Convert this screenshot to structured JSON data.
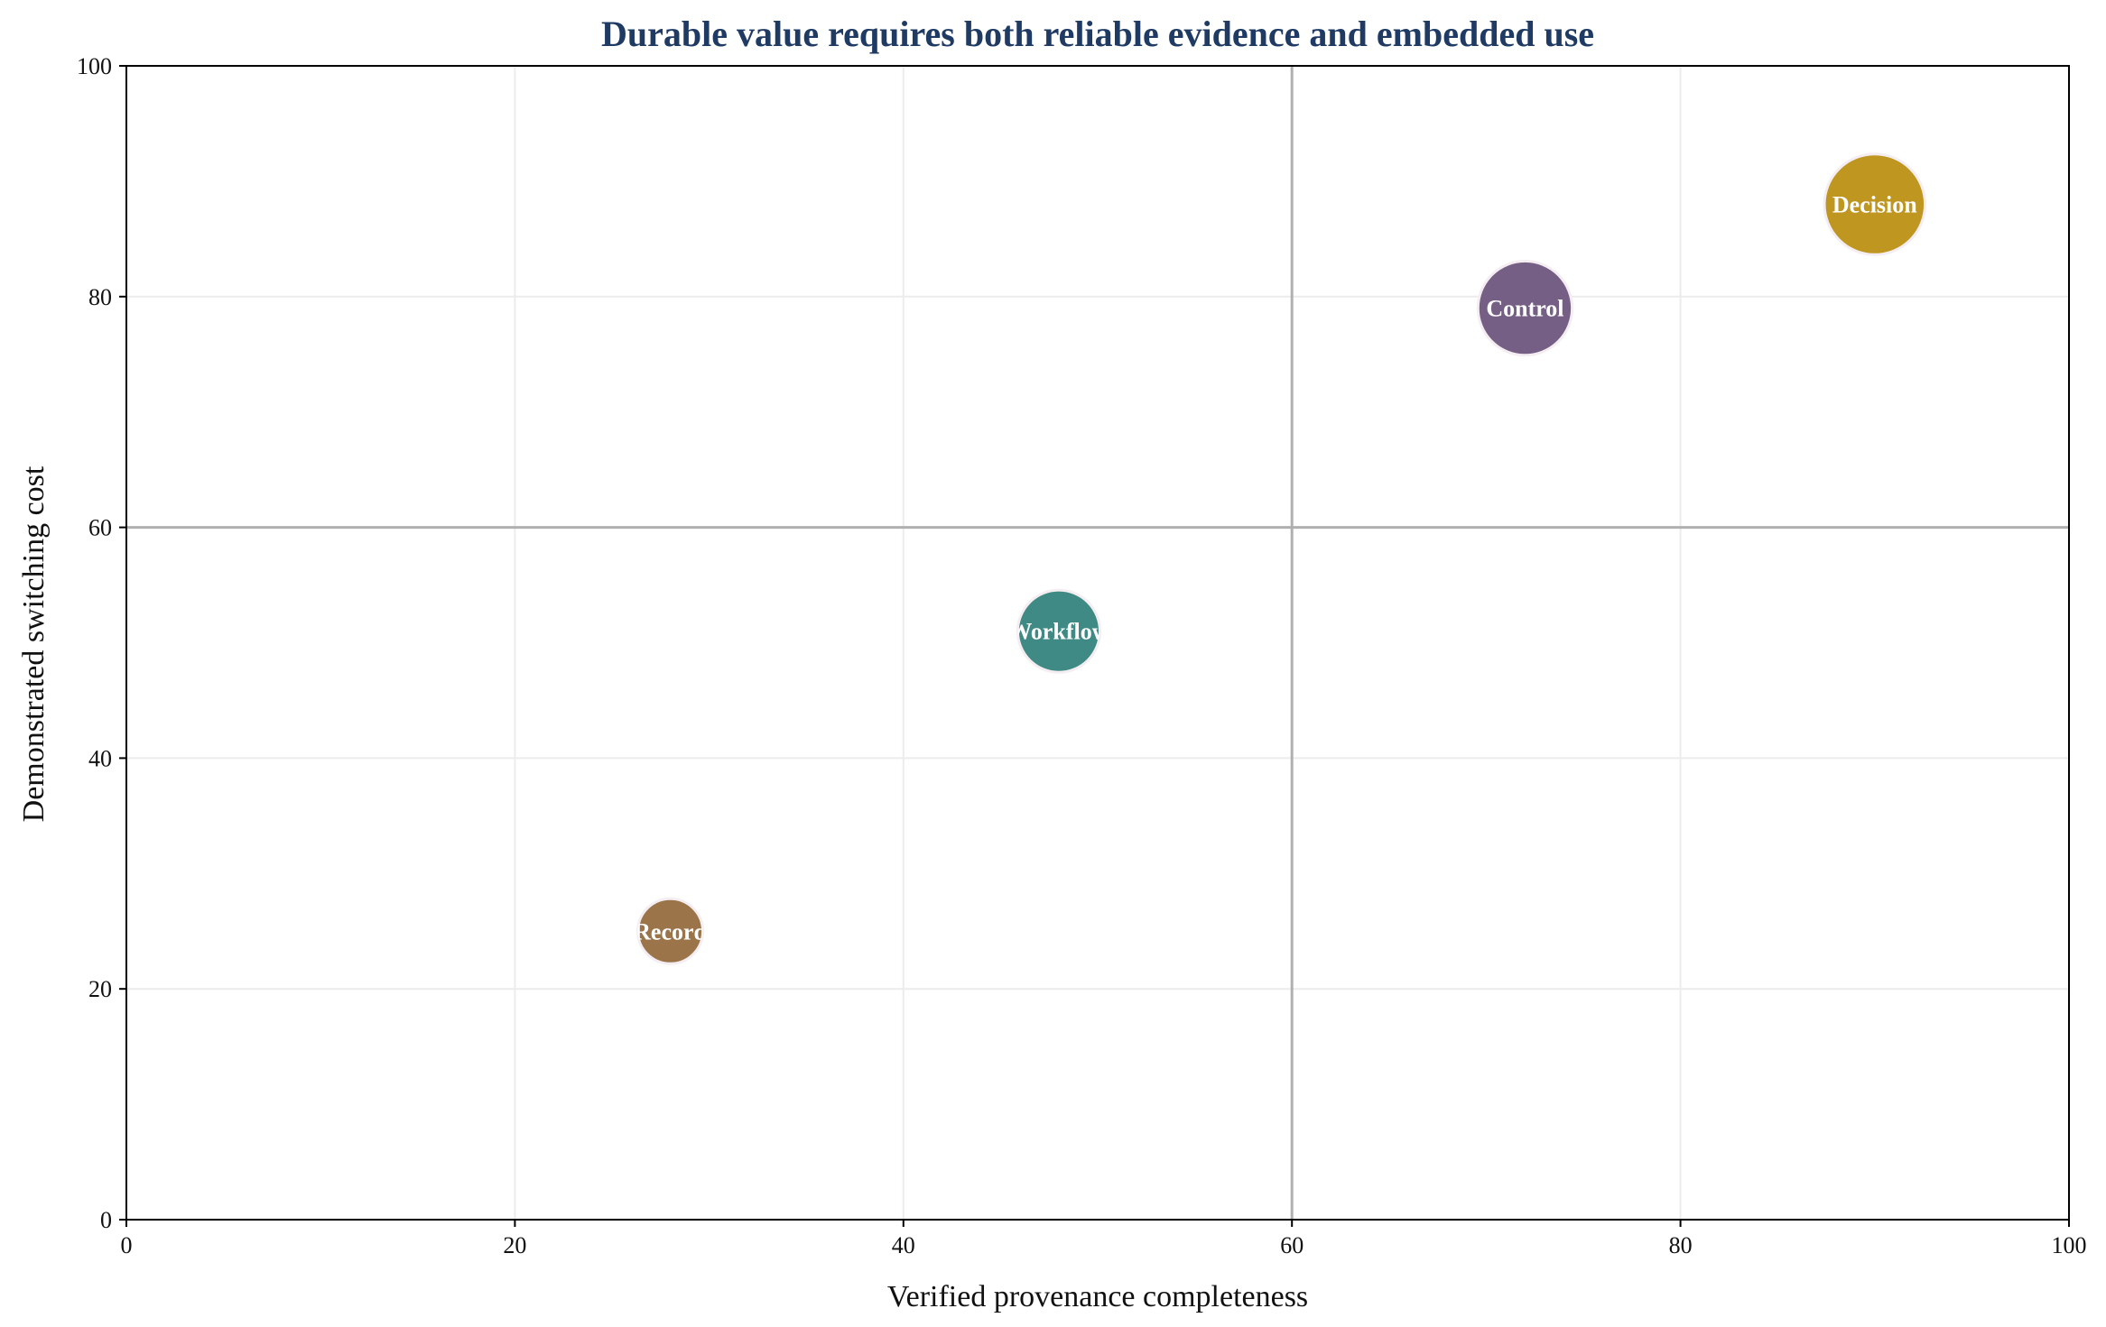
{
  "chart_data": {
    "type": "scatter",
    "title": "Durable value requires both reliable evidence and embedded use",
    "xlabel": "Verified provenance completeness",
    "ylabel": "Demonstrated switching cost",
    "xlim": [
      0,
      100
    ],
    "ylim": [
      0,
      100
    ],
    "xticks": [
      "0",
      "20",
      "40",
      "60",
      "80",
      "100"
    ],
    "yticks": [
      "0",
      "20",
      "40",
      "60",
      "80",
      "100"
    ],
    "grid": true,
    "reference_lines": {
      "x": 60,
      "y": 60
    },
    "points": [
      {
        "label": "Record",
        "x": 28,
        "y": 25,
        "size": 1.0,
        "color": "#9b744a"
      },
      {
        "label": "Workflow",
        "x": 48,
        "y": 51,
        "size": 1.6,
        "color": "#3f8a84"
      },
      {
        "label": "Control",
        "x": 72,
        "y": 79,
        "size": 2.1,
        "color": "#765f84"
      },
      {
        "label": "Decision",
        "x": 90,
        "y": 88,
        "size": 2.4,
        "color": "#bf961f"
      }
    ],
    "colors": {
      "title": "#1f3b63",
      "grid": "#ececec",
      "reference": "#b0b0b0",
      "axis": "#000000"
    }
  }
}
